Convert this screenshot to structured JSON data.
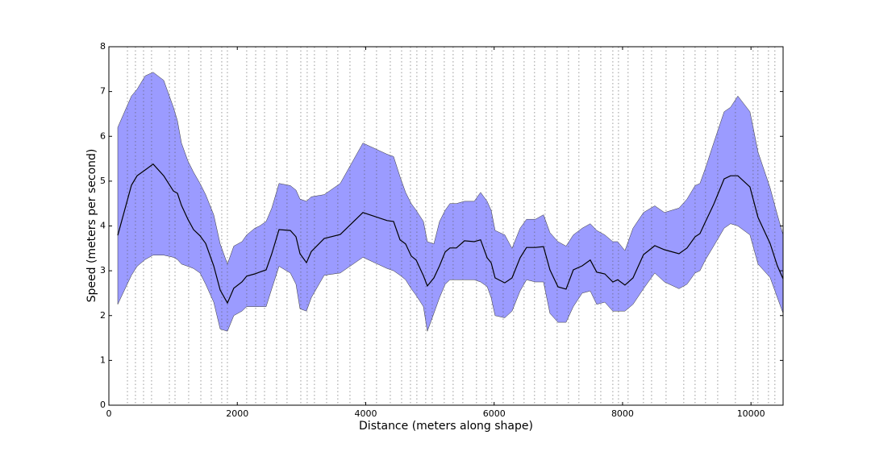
{
  "chart_data": {
    "type": "line",
    "xlabel": "Distance (meters along shape)",
    "ylabel": "Speed (meters per second)",
    "xlim": [
      0,
      10500
    ],
    "ylim": [
      0,
      8
    ],
    "xticks": [
      0,
      2000,
      4000,
      6000,
      8000,
      10000
    ],
    "yticks": [
      0,
      1,
      2,
      3,
      4,
      5,
      6,
      7,
      8
    ],
    "x": [
      138,
      352,
      440,
      565,
      690,
      854,
      1005,
      1067,
      1130,
      1231,
      1319,
      1419,
      1507,
      1633,
      1733,
      1846,
      1946,
      2072,
      2147,
      2273,
      2348,
      2449,
      2537,
      2650,
      2826,
      2914,
      2977,
      3077,
      3152,
      3353,
      3604,
      3956,
      4333,
      4433,
      4534,
      4621,
      4709,
      4785,
      4898,
      4960,
      5061,
      5149,
      5237,
      5312,
      5412,
      5538,
      5689,
      5789,
      5890,
      5953,
      6015,
      6166,
      6279,
      6404,
      6505,
      6643,
      6769,
      6869,
      6995,
      7120,
      7233,
      7371,
      7497,
      7598,
      7723,
      7849,
      7924,
      8037,
      8162,
      8326,
      8502,
      8653,
      8879,
      9004,
      9130,
      9205,
      9293,
      9419,
      9582,
      9682,
      9795,
      9984,
      10109,
      10298,
      10411,
      10500
    ],
    "series": [
      {
        "color": "#000000",
        "values": [
          3.79,
          4.91,
          5.12,
          5.25,
          5.38,
          5.12,
          4.78,
          4.73,
          4.46,
          4.15,
          3.92,
          3.78,
          3.61,
          3.11,
          2.57,
          2.28,
          2.61,
          2.75,
          2.88,
          2.93,
          2.97,
          3.02,
          3.38,
          3.92,
          3.9,
          3.76,
          3.38,
          3.18,
          3.43,
          3.72,
          3.81,
          4.3,
          4.12,
          4.1,
          3.69,
          3.6,
          3.33,
          3.24,
          2.89,
          2.66,
          2.84,
          3.11,
          3.42,
          3.51,
          3.51,
          3.67,
          3.65,
          3.69,
          3.29,
          3.18,
          2.84,
          2.73,
          2.84,
          3.29,
          3.52,
          3.52,
          3.54,
          3.02,
          2.64,
          2.59,
          3.02,
          3.11,
          3.24,
          2.97,
          2.93,
          2.75,
          2.8,
          2.68,
          2.84,
          3.36,
          3.56,
          3.47,
          3.38,
          3.51,
          3.76,
          3.83,
          4.1,
          4.48,
          5.05,
          5.12,
          5.12,
          4.87,
          4.19,
          3.61,
          3.11,
          2.82
        ]
      }
    ],
    "band": {
      "color": "#6666ff",
      "upper": [
        6.2,
        6.9,
        7.05,
        7.35,
        7.43,
        7.25,
        6.65,
        6.35,
        5.85,
        5.45,
        5.2,
        4.95,
        4.7,
        4.25,
        3.6,
        3.15,
        3.55,
        3.65,
        3.8,
        3.95,
        4.0,
        4.1,
        4.4,
        4.95,
        4.9,
        4.8,
        4.6,
        4.55,
        4.65,
        4.7,
        4.95,
        5.85,
        5.6,
        5.55,
        5.1,
        4.75,
        4.5,
        4.35,
        4.1,
        3.65,
        3.6,
        4.1,
        4.35,
        4.5,
        4.5,
        4.55,
        4.55,
        4.75,
        4.55,
        4.35,
        3.9,
        3.8,
        3.5,
        3.95,
        4.15,
        4.15,
        4.25,
        3.85,
        3.65,
        3.55,
        3.8,
        3.95,
        4.05,
        3.9,
        3.8,
        3.65,
        3.65,
        3.45,
        3.95,
        4.3,
        4.45,
        4.3,
        4.4,
        4.6,
        4.9,
        4.95,
        5.3,
        5.85,
        6.55,
        6.65,
        6.9,
        6.55,
        5.65,
        4.85,
        4.25,
        3.8
      ],
      "lower": [
        2.25,
        2.9,
        3.1,
        3.25,
        3.35,
        3.35,
        3.3,
        3.25,
        3.15,
        3.1,
        3.05,
        2.95,
        2.7,
        2.3,
        1.7,
        1.65,
        2.0,
        2.1,
        2.2,
        2.2,
        2.2,
        2.2,
        2.6,
        3.1,
        2.95,
        2.7,
        2.15,
        2.1,
        2.4,
        2.9,
        2.95,
        3.3,
        3.05,
        3.0,
        2.9,
        2.8,
        2.6,
        2.45,
        2.2,
        1.65,
        2.05,
        2.4,
        2.7,
        2.8,
        2.8,
        2.8,
        2.8,
        2.75,
        2.65,
        2.4,
        2.0,
        1.95,
        2.1,
        2.55,
        2.8,
        2.75,
        2.75,
        2.05,
        1.85,
        1.85,
        2.2,
        2.5,
        2.55,
        2.25,
        2.3,
        2.1,
        2.1,
        2.1,
        2.25,
        2.6,
        2.95,
        2.75,
        2.6,
        2.7,
        2.95,
        3.0,
        3.25,
        3.55,
        3.95,
        4.05,
        4.0,
        3.8,
        3.15,
        2.85,
        2.4,
        2.05
      ]
    },
    "stops": [
      289,
      414,
      540,
      665,
      942,
      1030,
      1243,
      1432,
      1595,
      1758,
      1846,
      2147,
      2286,
      2424,
      2612,
      2775,
      2989,
      3089,
      3202,
      3391,
      3566,
      3755,
      3981,
      4169,
      4383,
      4559,
      4697,
      4797,
      4935,
      5036,
      5224,
      5362,
      5513,
      5726,
      5877,
      5965,
      6141,
      6304,
      6467,
      6630,
      6794,
      6982,
      7158,
      7321,
      7573,
      7661,
      7849,
      7937,
      8087,
      8326,
      8452,
      8678,
      8954,
      9130,
      9293,
      9482,
      9758,
      10034,
      10109,
      10273,
      10373
    ]
  }
}
